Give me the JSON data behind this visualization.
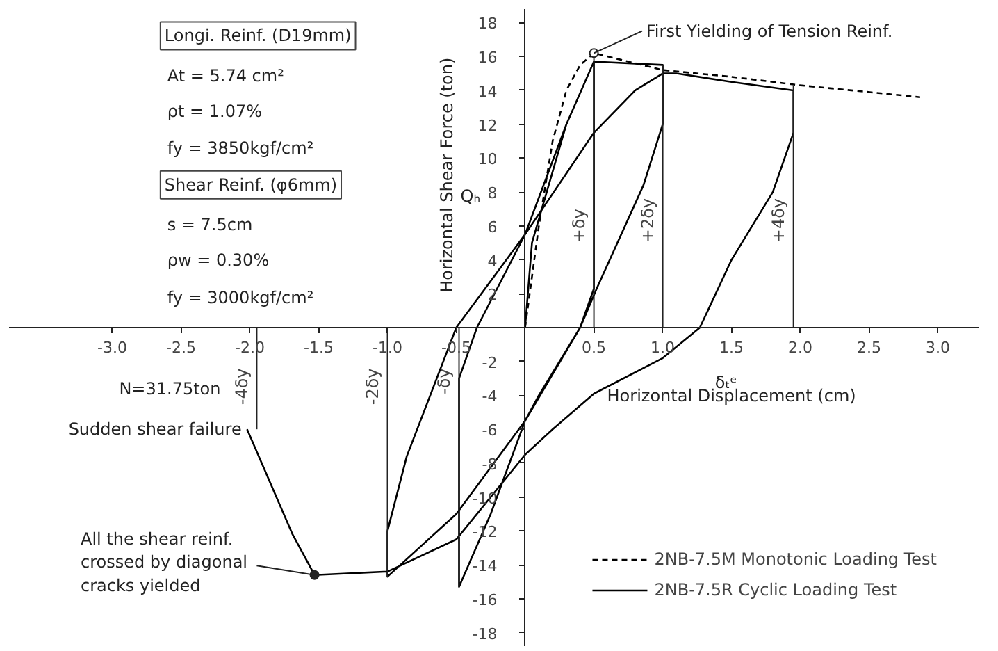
{
  "chart_data": {
    "type": "line",
    "xlabel": "Horizontal Displacement (cm)",
    "ylabel": "Horizontal Shear Force (ton)",
    "xlim": [
      -3.75,
      3.3
    ],
    "ylim": [
      -18.8,
      18.8
    ],
    "xticks": [
      {
        "value": -3,
        "label": "-3.0"
      },
      -2.5,
      {
        "value": -2,
        "label": "-2.0"
      },
      -1.5,
      {
        "value": -1,
        "label": "-1.0"
      },
      -0.5,
      0.5,
      {
        "value": 1,
        "label": "1.0"
      },
      1.5,
      {
        "value": 2,
        "label": "2.0"
      },
      2.5,
      {
        "value": 3,
        "label": "3.0"
      }
    ],
    "yticks": [
      -18,
      -16,
      -14,
      -12,
      -10,
      -8,
      -6,
      -4,
      -2,
      2,
      4,
      6,
      8,
      10,
      12,
      14,
      16,
      18
    ],
    "grid": false,
    "legend": "bottom right",
    "marker": "none",
    "series": [
      {
        "name": "2NB-7.5M Monotonic Loading Test",
        "color": "#000000",
        "line_style": "dashed",
        "x": [
          0,
          0.1,
          0.2,
          0.3,
          0.4,
          0.5,
          1.0,
          1.5,
          2.0,
          2.87
        ],
        "values": [
          0,
          6,
          11,
          14,
          15.5,
          16.2,
          15.2,
          14.8,
          14.3,
          13.6
        ]
      },
      {
        "name": "2NB-7.5R Cyclic Loading Test",
        "color": "#000000",
        "line_style": "solid",
        "x": [
          0,
          0.05,
          0.3,
          0.5,
          0.5,
          0.4,
          0.1,
          0,
          -0.25,
          -0.48,
          -0.48,
          -0.35,
          0,
          0.3,
          0.5,
          1.0,
          1.0,
          0.86,
          0.52,
          0.4,
          0,
          -0.5,
          -1.0,
          -1.0,
          -0.86,
          -0.5,
          0,
          0.5,
          0.8,
          1.0,
          1.1,
          1.5,
          1.95,
          1.95,
          1.8,
          1.5,
          1.27,
          1.0,
          0.5,
          0.2,
          0,
          -0.5,
          -1.0,
          -1.53,
          -1.69,
          -2.02
        ],
        "values": [
          0,
          5,
          12,
          15.7,
          2.3,
          0,
          -4,
          -5.5,
          -11,
          -15.3,
          -3,
          0,
          5.5,
          12,
          15.7,
          15.5,
          12,
          8.4,
          2.3,
          0,
          -5.5,
          -11,
          -14.7,
          -12,
          -7.6,
          0,
          5.5,
          11.5,
          14,
          15,
          15,
          14.5,
          14,
          11.5,
          8,
          4,
          0,
          -1.8,
          -3.9,
          -6,
          -7.5,
          -12.5,
          -14.4,
          -14.6,
          -12.2,
          -6.0
        ]
      }
    ],
    "ref_lines": [
      {
        "axis": "x",
        "value": 0.5,
        "label": "+δy"
      },
      {
        "axis": "x",
        "value": 1.0,
        "label": "+2δy"
      },
      {
        "axis": "x",
        "value": 1.95,
        "label": "+4δy"
      },
      {
        "axis": "x",
        "value": -0.48,
        "label": "-δy"
      },
      {
        "axis": "x",
        "value": -1.0,
        "label": "-2δy"
      },
      {
        "axis": "x",
        "value": -1.95,
        "label": "-4δy"
      }
    ],
    "annotations": [
      "Longi. Reinf. (D19mm)",
      "At = 5.74 cm²",
      "ρt = 1.07%",
      "fy = 3850kgf/cm²",
      "Shear Reinf. (φ6mm)",
      "s = 7.5cm",
      "ρw = 0.30%",
      "fy = 3000kgf/cm²",
      "N=31.75ton",
      "δₜᵉ",
      "Qₕ",
      {
        "text": "First Yielding of Tension Reinf.",
        "x": 0.5,
        "y": 16.2
      },
      {
        "text": "Sudden shear failure",
        "x": -2.02,
        "y": -6.0
      },
      {
        "text": "All the shear reinf. crossed by diagonal cracks yielded",
        "x": -1.53,
        "y": -14.6
      }
    ]
  }
}
